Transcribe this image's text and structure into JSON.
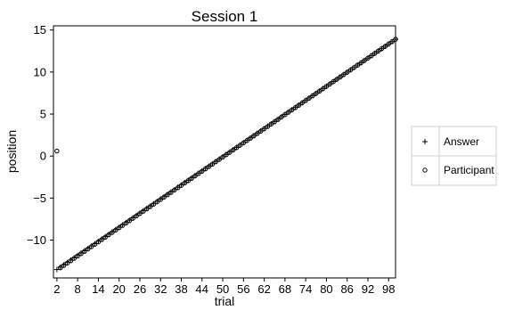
{
  "chart_data": {
    "type": "scatter",
    "title": "Session 1",
    "xlabel": "trial",
    "ylabel": "position",
    "xlim": [
      1,
      100
    ],
    "ylim": [
      -14.5,
      15.5
    ],
    "xticks": [
      2,
      8,
      14,
      20,
      26,
      32,
      38,
      44,
      50,
      56,
      62,
      68,
      74,
      80,
      86,
      92,
      98
    ],
    "yticks": [
      -10,
      -5,
      0,
      5,
      10,
      15
    ],
    "ytick_labels": [
      "−10",
      "−5",
      "0",
      "5",
      "10",
      "15"
    ],
    "grid": false,
    "legend_position": "right",
    "series": [
      {
        "name": "Answer",
        "marker": "plus",
        "x": [
          2,
          100
        ],
        "y_start": -13.5,
        "y_end": 13.9,
        "note_linear": true
      },
      {
        "name": "Participant",
        "marker": "circle",
        "x": [
          2,
          100
        ],
        "y_start": 0.6,
        "y_second": -13.3,
        "y_end": 13.9,
        "note_linear_from_3": true
      }
    ]
  },
  "legend": {
    "items": [
      {
        "label": "Answer",
        "symbol": "+"
      },
      {
        "label": "Participant",
        "symbol": "○"
      }
    ]
  }
}
